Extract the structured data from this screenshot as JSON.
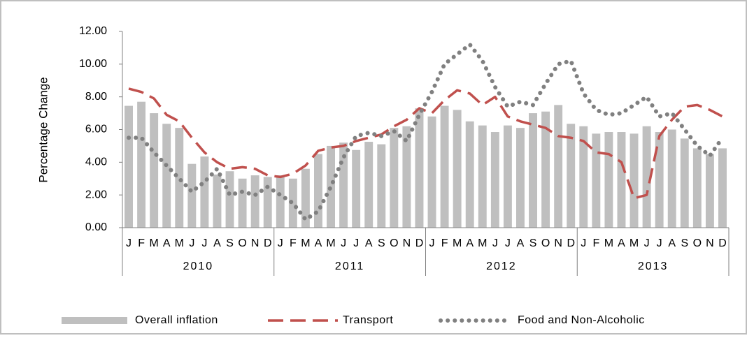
{
  "chart_data": {
    "type": "combo",
    "y_axis_label": "Percentage Change",
    "categories": [
      "J",
      "F",
      "M",
      "A",
      "M",
      "J",
      "J",
      "A",
      "S",
      "O",
      "N",
      "D",
      "J",
      "F",
      "M",
      "A",
      "M",
      "J",
      "J",
      "A",
      "S",
      "O",
      "N",
      "D",
      "J",
      "F",
      "M",
      "A",
      "M",
      "J",
      "J",
      "A",
      "S",
      "O",
      "N",
      "D",
      "J",
      "F",
      "M",
      "A",
      "M",
      "J",
      "J",
      "A",
      "S",
      "O",
      "N",
      "D"
    ],
    "groups": [
      "2010",
      "2011",
      "2012",
      "2013"
    ],
    "ylim": [
      0,
      12
    ],
    "yticks": [
      {
        "value": 0,
        "label": "0.00"
      },
      {
        "value": 2,
        "label": "2.00"
      },
      {
        "value": 4,
        "label": "4.00"
      },
      {
        "value": 6,
        "label": "6.00"
      },
      {
        "value": 8,
        "label": "8.00"
      },
      {
        "value": 10,
        "label": "10.00"
      },
      {
        "value": 12,
        "label": "12.00"
      }
    ],
    "series": [
      {
        "name": "Overall inflation",
        "color": "#bfbfbf",
        "style": "bar",
        "values": [
          7.45,
          7.7,
          7.0,
          6.35,
          6.1,
          3.9,
          4.35,
          3.25,
          3.45,
          3.0,
          3.2,
          3.1,
          3.2,
          3.0,
          3.6,
          4.5,
          5.0,
          5.2,
          4.75,
          5.25,
          5.1,
          6.1,
          6.2,
          7.3,
          6.8,
          7.45,
          7.2,
          6.5,
          6.25,
          5.85,
          6.25,
          6.1,
          7.0,
          7.1,
          7.5,
          6.35,
          6.2,
          5.75,
          5.85,
          5.85,
          5.75,
          6.2,
          5.85,
          6.0,
          5.45,
          4.85,
          4.5,
          4.85
        ]
      },
      {
        "name": "Transport",
        "color": "#c0504d",
        "style": "dashed",
        "values": [
          8.5,
          8.3,
          7.9,
          6.9,
          6.5,
          5.5,
          4.6,
          4.0,
          3.6,
          3.7,
          3.6,
          3.2,
          3.1,
          3.3,
          3.8,
          4.7,
          4.9,
          5.0,
          5.3,
          5.5,
          5.7,
          6.2,
          6.6,
          7.3,
          7.0,
          7.8,
          8.4,
          8.2,
          7.5,
          8.0,
          6.8,
          6.5,
          6.3,
          6.1,
          5.6,
          5.5,
          5.3,
          4.6,
          4.5,
          4.0,
          1.8,
          2.0,
          5.6,
          6.6,
          7.4,
          7.5,
          7.2,
          6.8
        ]
      },
      {
        "name": "Food and Non-Alcoholic",
        "color": "#808080",
        "style": "dotted",
        "values": [
          5.5,
          5.5,
          4.6,
          3.8,
          3.0,
          2.2,
          2.8,
          3.6,
          2.0,
          2.2,
          2.0,
          2.5,
          2.0,
          1.5,
          0.5,
          1.0,
          2.5,
          4.3,
          5.6,
          5.8,
          5.6,
          5.9,
          5.3,
          6.9,
          8.3,
          10.0,
          10.6,
          11.2,
          10.2,
          8.6,
          7.4,
          7.7,
          7.5,
          8.8,
          10.0,
          10.2,
          8.2,
          7.2,
          6.9,
          7.0,
          7.5,
          8.0,
          6.8,
          7.0,
          6.0,
          5.0,
          4.4,
          5.5
        ]
      }
    ]
  }
}
